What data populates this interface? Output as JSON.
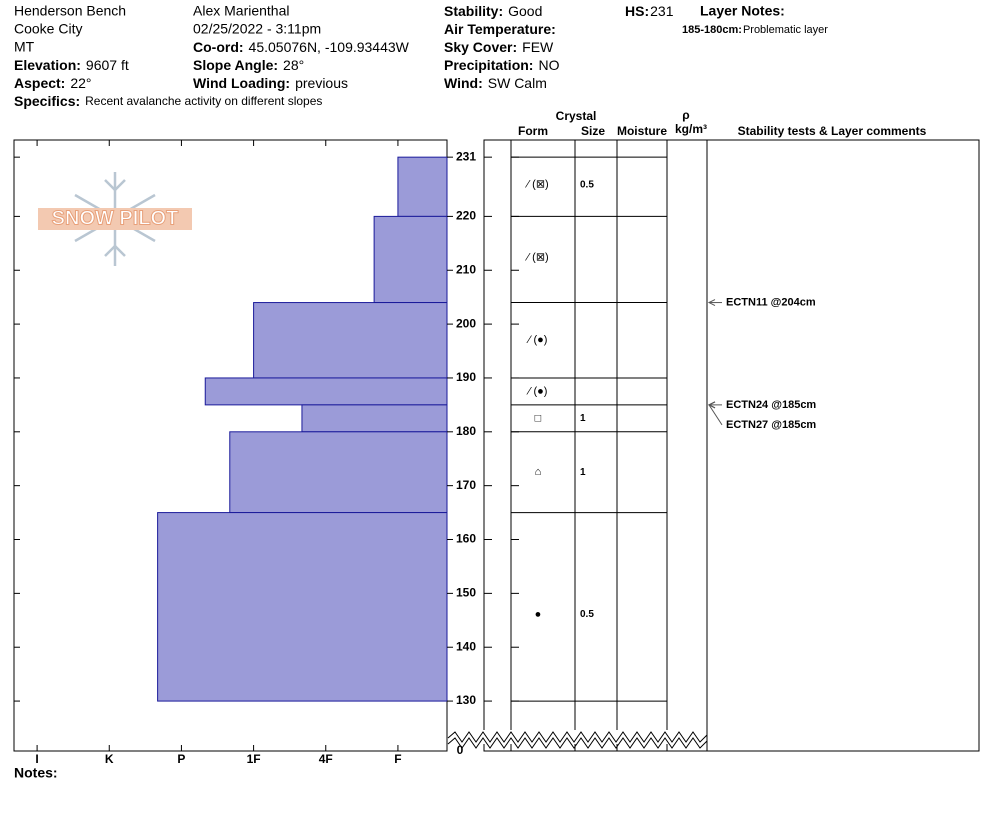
{
  "header": {
    "location": "Henderson Bench",
    "city": "Cooke City",
    "state": "MT",
    "elevation": {
      "label": "Elevation:",
      "value": "9607 ft"
    },
    "aspect": {
      "label": "Aspect:",
      "value": "22°"
    },
    "specifics": {
      "label": "Specifics:",
      "value": "Recent avalanche activity on different slopes"
    },
    "observer": "Alex Marienthal",
    "datetime": "02/25/2022 - 3:11pm",
    "coord": {
      "label": "Co-ord:",
      "value": "45.05076N, -109.93443W"
    },
    "slope": {
      "label": "Slope Angle:",
      "value": "28°"
    },
    "wind_loading": {
      "label": "Wind Loading:",
      "value": "previous"
    },
    "stability": {
      "label": "Stability:",
      "value": "Good"
    },
    "air_temp": {
      "label": "Air Temperature:"
    },
    "sky": {
      "label": "Sky Cover:",
      "value": "FEW"
    },
    "precip": {
      "label": "Precipitation:",
      "value": "NO"
    },
    "wind": {
      "label": "Wind:",
      "value": "SW Calm"
    },
    "hs": {
      "label": "HS:",
      "value": 231
    },
    "layer_notes": {
      "label": "Layer Notes:",
      "range": "185-180cm:",
      "text": "Problematic layer"
    }
  },
  "logo": "SNOW PILOT",
  "notes_label": "Notes:",
  "table_headers": {
    "crystal": "Crystal",
    "form": "Form",
    "size": "Size",
    "moisture": "Moisture",
    "rho": "ρ",
    "density_unit": "kg/m³",
    "comments": "Stability tests & Layer comments"
  },
  "chart_data": {
    "type": "hardness-profile",
    "xlim": [
      6.32,
      0.32
    ],
    "xticks": [
      {
        "value": 6,
        "label": "I"
      },
      {
        "value": 5,
        "label": "K"
      },
      {
        "value": 4,
        "label": "P"
      },
      {
        "value": 3,
        "label": "1F"
      },
      {
        "value": 2,
        "label": "4F"
      },
      {
        "value": 1,
        "label": "F"
      }
    ],
    "ylim": [
      125,
      234
    ],
    "yticks": [
      231,
      220,
      210,
      200,
      190,
      180,
      170,
      160,
      150,
      140,
      130
    ],
    "ground_tick": 0,
    "color": "#9b9bd8",
    "layers": [
      {
        "top": 231,
        "bottom": 220,
        "hardness": 1,
        "form": "⁄ (⊠)",
        "size": 0.5
      },
      {
        "top": 220,
        "bottom": 204,
        "hardness": 1.33,
        "form": "⁄ (⊠)",
        "size": null
      },
      {
        "top": 204,
        "bottom": 190,
        "hardness": 3,
        "form": "⁄ (●)",
        "size": null
      },
      {
        "top": 190,
        "bottom": 185,
        "hardness": 3.67,
        "form": "⁄ (●)",
        "size": null
      },
      {
        "top": 185,
        "bottom": 180,
        "hardness": 2.33,
        "form": "□",
        "size": 1
      },
      {
        "top": 180,
        "bottom": 165,
        "hardness": 3.33,
        "form": "⌂",
        "size": 1
      },
      {
        "top": 165,
        "bottom": 130,
        "hardness": 4.33,
        "form": "●",
        "size": 0.5
      }
    ],
    "tests": [
      {
        "label": "ECTN11 @204cm",
        "height": 204
      },
      {
        "label": "ECTN24 @185cm",
        "height": 185
      },
      {
        "label": "ECTN27 @185cm",
        "height": 185
      }
    ]
  }
}
